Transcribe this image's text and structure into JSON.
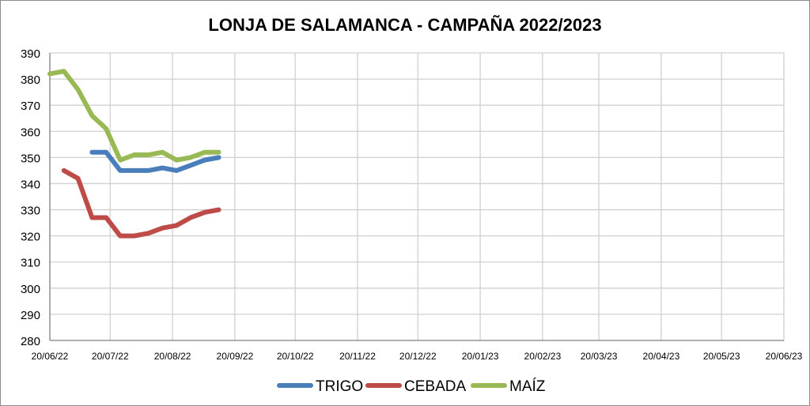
{
  "chart_data": {
    "type": "line",
    "title": "LONJA DE SALAMANCA - CAMPAÑA 2022/2023",
    "xlabel": "",
    "ylabel": "",
    "ylim": [
      280,
      390
    ],
    "yticks": [
      280,
      290,
      300,
      310,
      320,
      330,
      340,
      350,
      360,
      370,
      380,
      390
    ],
    "xlim": [
      "2022-06-20",
      "2023-06-20"
    ],
    "xtick_labels": [
      "20/06/22",
      "20/07/22",
      "20/08/22",
      "20/09/22",
      "20/10/22",
      "20/11/22",
      "20/12/22",
      "20/01/23",
      "20/02/23",
      "20/03/23",
      "20/04/23",
      "20/05/23",
      "20/06/23"
    ],
    "xtick_dates": [
      "2022-06-20",
      "2022-07-20",
      "2022-08-20",
      "2022-09-20",
      "2022-10-20",
      "2022-11-20",
      "2022-12-20",
      "2023-01-20",
      "2023-02-20",
      "2023-03-20",
      "2023-04-20",
      "2023-05-20",
      "2023-06-20"
    ],
    "grid": true,
    "legend": "bottom",
    "series": [
      {
        "name": "TRIGO",
        "color": "#4a7ebb",
        "x": [
          "2022-07-11",
          "2022-07-18",
          "2022-07-25",
          "2022-08-01",
          "2022-08-08",
          "2022-08-15",
          "2022-08-22",
          "2022-08-29",
          "2022-09-05",
          "2022-09-12"
        ],
        "values": [
          352,
          352,
          345,
          345,
          345,
          346,
          345,
          347,
          349,
          350
        ]
      },
      {
        "name": "CEBADA",
        "color": "#be4b48",
        "x": [
          "2022-06-27",
          "2022-07-04",
          "2022-07-11",
          "2022-07-18",
          "2022-07-25",
          "2022-08-01",
          "2022-08-08",
          "2022-08-15",
          "2022-08-22",
          "2022-08-29",
          "2022-09-05",
          "2022-09-12"
        ],
        "values": [
          345,
          342,
          327,
          327,
          320,
          320,
          321,
          323,
          324,
          327,
          329,
          330
        ]
      },
      {
        "name": "MAÍZ",
        "color": "#98b954",
        "x": [
          "2022-06-20",
          "2022-06-27",
          "2022-07-04",
          "2022-07-11",
          "2022-07-18",
          "2022-07-25",
          "2022-08-01",
          "2022-08-08",
          "2022-08-15",
          "2022-08-22",
          "2022-08-29",
          "2022-09-05",
          "2022-09-12"
        ],
        "values": [
          382,
          383,
          376,
          366,
          361,
          349,
          351,
          351,
          352,
          349,
          350,
          352,
          352
        ]
      }
    ]
  }
}
